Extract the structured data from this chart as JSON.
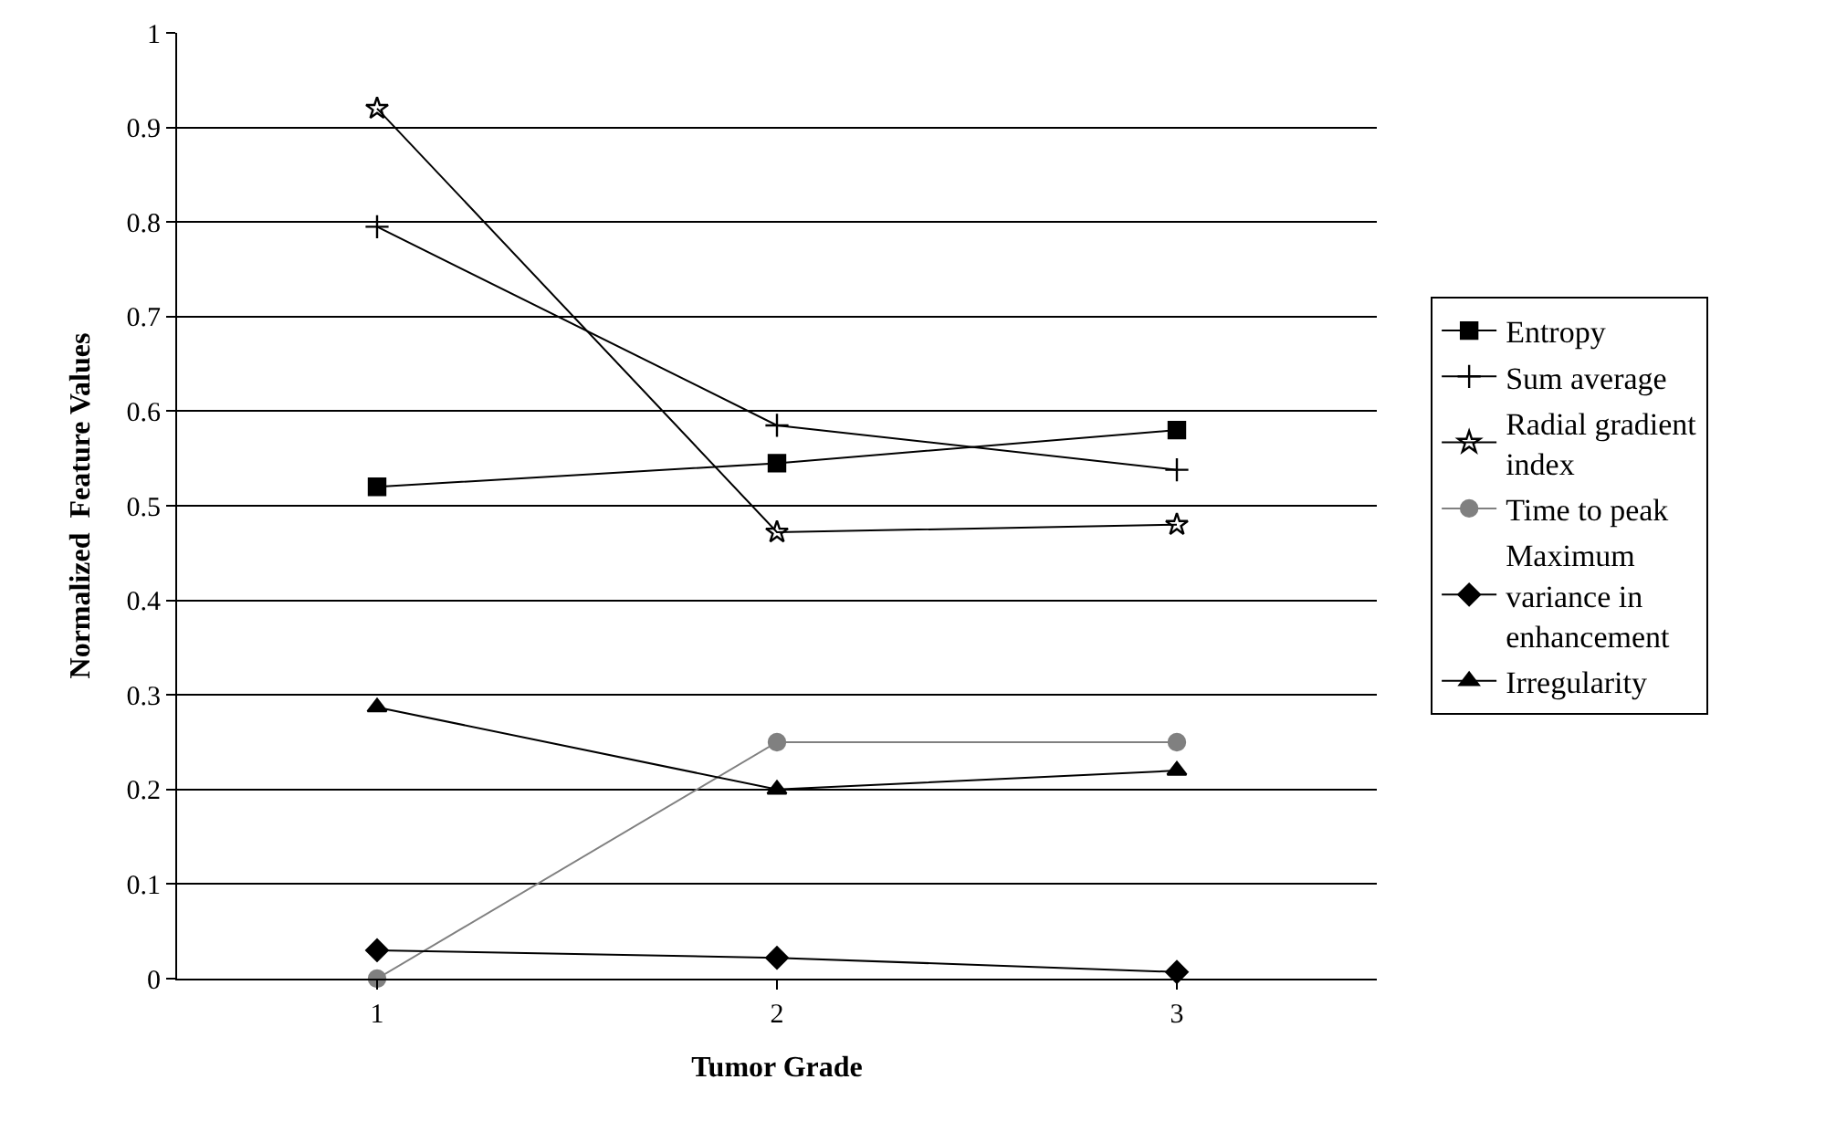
{
  "chart_data": {
    "type": "line",
    "xlabel": "Tumor Grade",
    "ylabel": "Normalized  Feature Values",
    "categories": [
      "1",
      "2",
      "3"
    ],
    "series": [
      {
        "name": "Entropy",
        "color": "#000000",
        "marker": "square",
        "values": [
          0.52,
          0.545,
          0.58
        ]
      },
      {
        "name": "Sum average",
        "color": "#000000",
        "marker": "cross",
        "values": [
          0.795,
          0.585,
          0.538
        ]
      },
      {
        "name": "Radial gradient index",
        "color": "#000000",
        "marker": "star",
        "values": [
          0.92,
          0.472,
          0.48
        ]
      },
      {
        "name": "Time to peak",
        "color": "#808080",
        "marker": "circle",
        "values": [
          0.0,
          0.25,
          0.25
        ]
      },
      {
        "name": "Maximum variance in enhancement",
        "color": "#000000",
        "marker": "diamond",
        "values": [
          0.03,
          0.022,
          0.007
        ]
      },
      {
        "name": "Irregularity",
        "color": "#000000",
        "marker": "triangle",
        "values": [
          0.287,
          0.2,
          0.22
        ]
      }
    ],
    "ylim": [
      0,
      1
    ],
    "yticks": [
      0,
      0.1,
      0.2,
      0.3,
      0.4,
      0.5,
      0.6,
      0.7,
      0.8,
      0.9,
      1
    ],
    "grid": "y",
    "legend": "right",
    "line_style": "solid"
  }
}
